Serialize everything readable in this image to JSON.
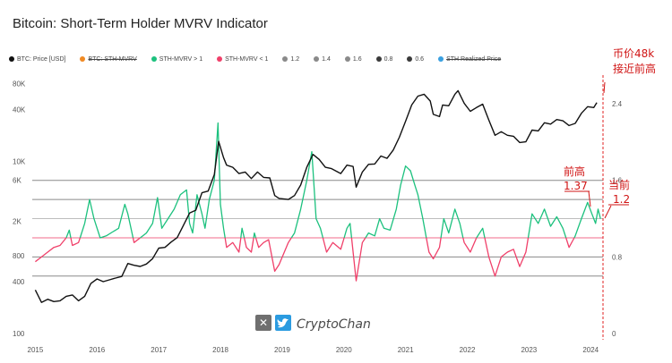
{
  "title": "Bitcoin: Short-Term Holder MVRV Indicator",
  "legend": [
    {
      "label": "BTC: Price [USD]",
      "color": "#111111",
      "active": true
    },
    {
      "label": "BTC: STH-MVRV",
      "color": "#f08a24",
      "active": false
    },
    {
      "label": "STH-MVRV > 1",
      "color": "#1cc17e",
      "active": true
    },
    {
      "label": "STH-MVRV < 1",
      "color": "#f0406a",
      "active": true
    },
    {
      "label": "1.2",
      "color": "#8a8a8a",
      "active": true
    },
    {
      "label": "1.4",
      "color": "#8a8a8a",
      "active": true
    },
    {
      "label": "1.6",
      "color": "#8a8a8a",
      "active": true
    },
    {
      "label": "0.8",
      "color": "#3a3a3a",
      "active": true
    },
    {
      "label": "0.6",
      "color": "#3a3a3a",
      "active": true
    },
    {
      "label": "STH Realized Price",
      "color": "#3aa0e0",
      "active": false
    }
  ],
  "watermark": {
    "text": "CryptoChan",
    "icons": [
      "x-logo-icon",
      "twitter-bird-icon"
    ]
  },
  "annotations": {
    "current_price": [
      "币价48k",
      "接近前高"
    ],
    "previous_high": [
      "前高",
      "1.37"
    ],
    "current_value": [
      "当前",
      "1.2"
    ]
  },
  "chart_data": {
    "type": "line",
    "title": "Bitcoin: Short-Term Holder MVRV Indicator",
    "x_ticks": [
      "2015",
      "2016",
      "2017",
      "2018",
      "2019",
      "2020",
      "2021",
      "2022",
      "2023",
      "2024"
    ],
    "xlim": [
      2014.95,
      2024.2
    ],
    "left_axis": {
      "scale": "log",
      "ticks": [
        "100",
        "400",
        "800",
        "2K",
        "6K",
        "10K",
        "40K",
        "80K"
      ],
      "ylim": [
        100,
        100000
      ]
    },
    "right_axis": {
      "ticks": [
        "0",
        "0.8",
        "1.6",
        "2.4"
      ],
      "ylim": [
        0,
        2.7
      ]
    },
    "levels": [
      {
        "name": "1.2",
        "value": 1.2
      },
      {
        "name": "1.4",
        "value": 1.4
      },
      {
        "name": "1.6",
        "value": 1.6
      },
      {
        "name": "0.8",
        "value": 0.8
      },
      {
        "name": "0.6",
        "value": 0.6
      }
    ],
    "series": [
      {
        "name": "BTC: Price [USD]",
        "axis": "left",
        "color": "#111111",
        "points": [
          [
            2015.0,
            320
          ],
          [
            2015.1,
            230
          ],
          [
            2015.2,
            250
          ],
          [
            2015.3,
            235
          ],
          [
            2015.4,
            240
          ],
          [
            2015.5,
            270
          ],
          [
            2015.6,
            280
          ],
          [
            2015.7,
            240
          ],
          [
            2015.8,
            270
          ],
          [
            2015.9,
            380
          ],
          [
            2016.0,
            430
          ],
          [
            2016.1,
            400
          ],
          [
            2016.2,
            420
          ],
          [
            2016.3,
            440
          ],
          [
            2016.4,
            460
          ],
          [
            2016.5,
            650
          ],
          [
            2016.6,
            620
          ],
          [
            2016.7,
            600
          ],
          [
            2016.8,
            640
          ],
          [
            2016.9,
            740
          ],
          [
            2017.0,
            980
          ],
          [
            2017.1,
            1000
          ],
          [
            2017.2,
            1150
          ],
          [
            2017.3,
            1300
          ],
          [
            2017.4,
            1800
          ],
          [
            2017.5,
            2500
          ],
          [
            2017.6,
            2700
          ],
          [
            2017.7,
            4300
          ],
          [
            2017.8,
            4500
          ],
          [
            2017.9,
            7000
          ],
          [
            2017.97,
            17000
          ],
          [
            2018.05,
            11000
          ],
          [
            2018.1,
            9000
          ],
          [
            2018.2,
            8500
          ],
          [
            2018.3,
            7200
          ],
          [
            2018.4,
            7500
          ],
          [
            2018.5,
            6300
          ],
          [
            2018.6,
            7500
          ],
          [
            2018.7,
            6500
          ],
          [
            2018.8,
            6400
          ],
          [
            2018.88,
            4000
          ],
          [
            2018.95,
            3700
          ],
          [
            2019.1,
            3600
          ],
          [
            2019.2,
            4000
          ],
          [
            2019.3,
            5300
          ],
          [
            2019.4,
            8500
          ],
          [
            2019.5,
            12000
          ],
          [
            2019.6,
            10500
          ],
          [
            2019.7,
            8500
          ],
          [
            2019.8,
            8200
          ],
          [
            2019.95,
            7200
          ],
          [
            2020.05,
            9000
          ],
          [
            2020.15,
            8700
          ],
          [
            2020.2,
            5000
          ],
          [
            2020.3,
            7500
          ],
          [
            2020.4,
            9200
          ],
          [
            2020.5,
            9300
          ],
          [
            2020.6,
            11500
          ],
          [
            2020.7,
            10800
          ],
          [
            2020.8,
            13500
          ],
          [
            2020.9,
            19000
          ],
          [
            2021.0,
            29000
          ],
          [
            2021.1,
            45000
          ],
          [
            2021.2,
            57000
          ],
          [
            2021.3,
            60000
          ],
          [
            2021.4,
            50000
          ],
          [
            2021.45,
            35000
          ],
          [
            2021.55,
            33000
          ],
          [
            2021.6,
            45000
          ],
          [
            2021.7,
            44000
          ],
          [
            2021.8,
            60000
          ],
          [
            2021.85,
            66000
          ],
          [
            2021.95,
            47000
          ],
          [
            2022.05,
            38000
          ],
          [
            2022.15,
            42000
          ],
          [
            2022.25,
            46000
          ],
          [
            2022.35,
            30000
          ],
          [
            2022.45,
            20000
          ],
          [
            2022.55,
            22000
          ],
          [
            2022.65,
            20000
          ],
          [
            2022.75,
            19500
          ],
          [
            2022.85,
            16500
          ],
          [
            2022.95,
            16800
          ],
          [
            2023.05,
            23000
          ],
          [
            2023.15,
            22500
          ],
          [
            2023.25,
            28000
          ],
          [
            2023.35,
            27000
          ],
          [
            2023.45,
            30500
          ],
          [
            2023.55,
            29500
          ],
          [
            2023.65,
            26000
          ],
          [
            2023.75,
            27500
          ],
          [
            2023.85,
            36000
          ],
          [
            2023.95,
            43000
          ],
          [
            2024.05,
            42000
          ],
          [
            2024.1,
            48000
          ]
        ]
      },
      {
        "name": "STH-MVRV",
        "axis": "right",
        "color_above": "#1cc17e",
        "color_below": "#f0406a",
        "points": [
          [
            2015.0,
            0.75
          ],
          [
            2015.1,
            0.8
          ],
          [
            2015.2,
            0.85
          ],
          [
            2015.3,
            0.9
          ],
          [
            2015.4,
            0.92
          ],
          [
            2015.5,
            1.0
          ],
          [
            2015.55,
            1.08
          ],
          [
            2015.6,
            0.92
          ],
          [
            2015.7,
            0.95
          ],
          [
            2015.8,
            1.15
          ],
          [
            2015.88,
            1.4
          ],
          [
            2015.95,
            1.2
          ],
          [
            2016.05,
            1.0
          ],
          [
            2016.15,
            1.02
          ],
          [
            2016.25,
            1.06
          ],
          [
            2016.35,
            1.1
          ],
          [
            2016.45,
            1.35
          ],
          [
            2016.5,
            1.25
          ],
          [
            2016.6,
            0.95
          ],
          [
            2016.7,
            1.0
          ],
          [
            2016.8,
            1.05
          ],
          [
            2016.9,
            1.15
          ],
          [
            2016.98,
            1.42
          ],
          [
            2017.05,
            1.1
          ],
          [
            2017.15,
            1.2
          ],
          [
            2017.25,
            1.3
          ],
          [
            2017.35,
            1.45
          ],
          [
            2017.45,
            1.5
          ],
          [
            2017.5,
            1.15
          ],
          [
            2017.55,
            1.05
          ],
          [
            2017.62,
            1.45
          ],
          [
            2017.7,
            1.25
          ],
          [
            2017.75,
            1.1
          ],
          [
            2017.82,
            1.4
          ],
          [
            2017.9,
            1.6
          ],
          [
            2017.96,
            2.2
          ],
          [
            2018.0,
            1.35
          ],
          [
            2018.05,
            1.1
          ],
          [
            2018.1,
            0.9
          ],
          [
            2018.2,
            0.95
          ],
          [
            2018.3,
            0.85
          ],
          [
            2018.35,
            1.1
          ],
          [
            2018.42,
            0.9
          ],
          [
            2018.5,
            0.85
          ],
          [
            2018.55,
            1.05
          ],
          [
            2018.62,
            0.9
          ],
          [
            2018.7,
            0.95
          ],
          [
            2018.78,
            0.98
          ],
          [
            2018.88,
            0.65
          ],
          [
            2018.95,
            0.72
          ],
          [
            2019.1,
            0.95
          ],
          [
            2019.2,
            1.05
          ],
          [
            2019.3,
            1.3
          ],
          [
            2019.4,
            1.6
          ],
          [
            2019.48,
            1.9
          ],
          [
            2019.55,
            1.2
          ],
          [
            2019.62,
            1.1
          ],
          [
            2019.72,
            0.85
          ],
          [
            2019.82,
            0.95
          ],
          [
            2019.95,
            0.88
          ],
          [
            2020.05,
            1.1
          ],
          [
            2020.1,
            1.15
          ],
          [
            2020.2,
            0.55
          ],
          [
            2020.3,
            0.95
          ],
          [
            2020.4,
            1.05
          ],
          [
            2020.5,
            1.02
          ],
          [
            2020.58,
            1.2
          ],
          [
            2020.65,
            1.1
          ],
          [
            2020.75,
            1.08
          ],
          [
            2020.85,
            1.3
          ],
          [
            2020.92,
            1.55
          ],
          [
            2021.0,
            1.75
          ],
          [
            2021.08,
            1.7
          ],
          [
            2021.15,
            1.55
          ],
          [
            2021.2,
            1.45
          ],
          [
            2021.28,
            1.2
          ],
          [
            2021.38,
            0.85
          ],
          [
            2021.45,
            0.78
          ],
          [
            2021.55,
            0.9
          ],
          [
            2021.62,
            1.2
          ],
          [
            2021.7,
            1.05
          ],
          [
            2021.8,
            1.3
          ],
          [
            2021.88,
            1.15
          ],
          [
            2021.95,
            0.95
          ],
          [
            2022.05,
            0.85
          ],
          [
            2022.15,
            1.0
          ],
          [
            2022.25,
            1.1
          ],
          [
            2022.35,
            0.8
          ],
          [
            2022.45,
            0.6
          ],
          [
            2022.55,
            0.8
          ],
          [
            2022.65,
            0.85
          ],
          [
            2022.75,
            0.88
          ],
          [
            2022.85,
            0.7
          ],
          [
            2022.95,
            0.85
          ],
          [
            2023.05,
            1.25
          ],
          [
            2023.15,
            1.15
          ],
          [
            2023.25,
            1.3
          ],
          [
            2023.35,
            1.12
          ],
          [
            2023.45,
            1.22
          ],
          [
            2023.55,
            1.1
          ],
          [
            2023.65,
            0.9
          ],
          [
            2023.75,
            1.02
          ],
          [
            2023.85,
            1.2
          ],
          [
            2023.95,
            1.37
          ],
          [
            2024.02,
            1.25
          ],
          [
            2024.08,
            1.15
          ],
          [
            2024.12,
            1.3
          ],
          [
            2024.16,
            1.2
          ]
        ]
      }
    ]
  }
}
